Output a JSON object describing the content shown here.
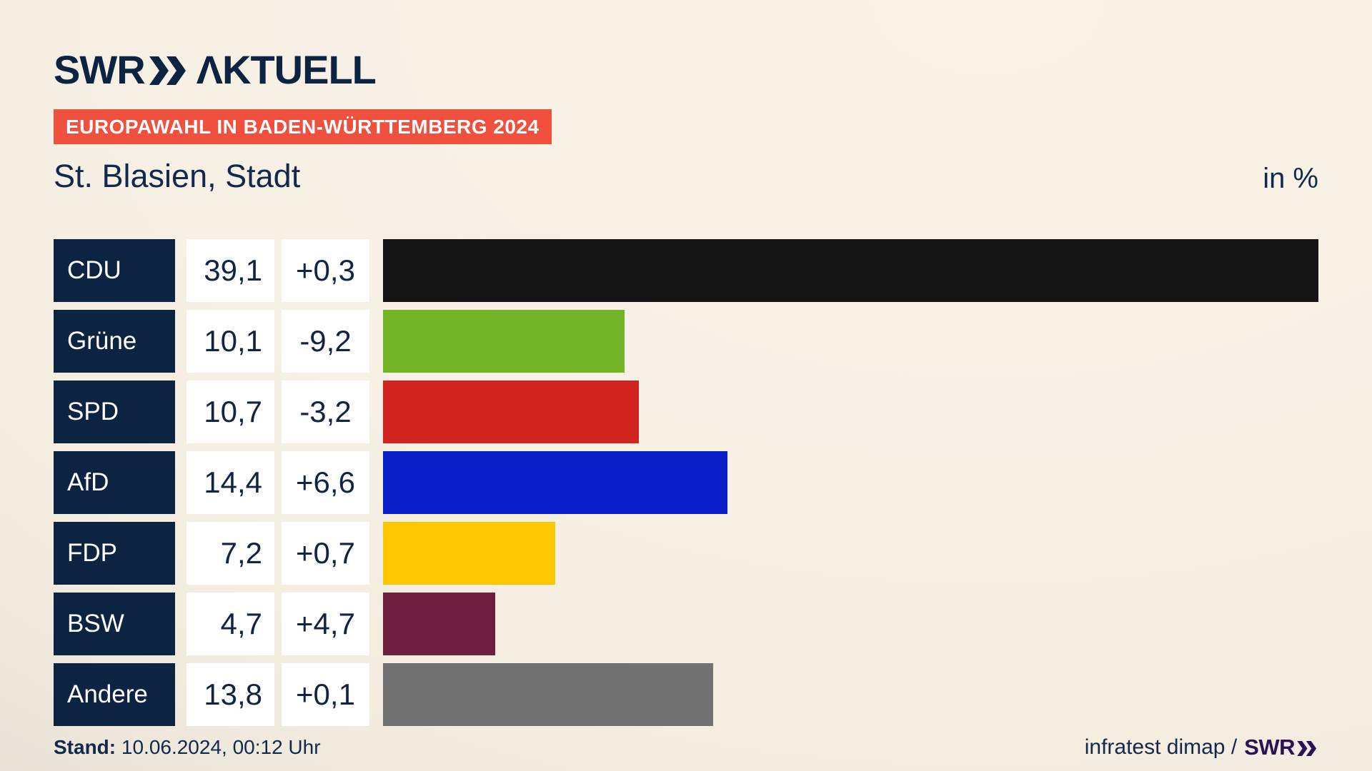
{
  "header": {
    "brand": {
      "swr": "SWR",
      "aktuell": "ΛKTUELL"
    },
    "badge": "EUROPAWAHL IN BADEN-WÜRTTEMBERG 2024",
    "title": "St. Blasien, Stadt",
    "unit_label": "in %"
  },
  "chart_data": {
    "type": "bar",
    "orientation": "horizontal",
    "title": "St. Blasien, Stadt",
    "subtitle": "Europawahl in Baden-Württemberg 2024",
    "unit": "in %",
    "xlim": [
      0,
      39.1
    ],
    "grid": false,
    "legend": "none",
    "categories": [
      "CDU",
      "Grüne",
      "SPD",
      "AfD",
      "FDP",
      "BSW",
      "Andere"
    ],
    "values": [
      39.1,
      10.1,
      10.7,
      14.4,
      7.2,
      4.7,
      13.8
    ],
    "value_labels": [
      "39,1",
      "10,1",
      "10,7",
      "14,4",
      "7,2",
      "4,7",
      "13,8"
    ],
    "delta_labels": [
      "+0,3",
      "-9,2",
      "-3,2",
      "+6,6",
      "+0,7",
      "+4,7",
      "+0,1"
    ],
    "bar_colors": [
      "#141414",
      "#74b427",
      "#d2241e",
      "#0b1fc9",
      "#fcc600",
      "#6e1f3f",
      "#717171"
    ]
  },
  "footer": {
    "stand_label": "Stand:",
    "stand_value": "10.06.2024, 00:12 Uhr",
    "source": "infratest dimap /",
    "source_brand": "SWR"
  },
  "colors": {
    "background": "#f7f0e5",
    "navy": "#0d2342",
    "badge_red": "#f0503d",
    "box_white": "#fefefe",
    "footer_brand_purple": "#2c1252"
  }
}
